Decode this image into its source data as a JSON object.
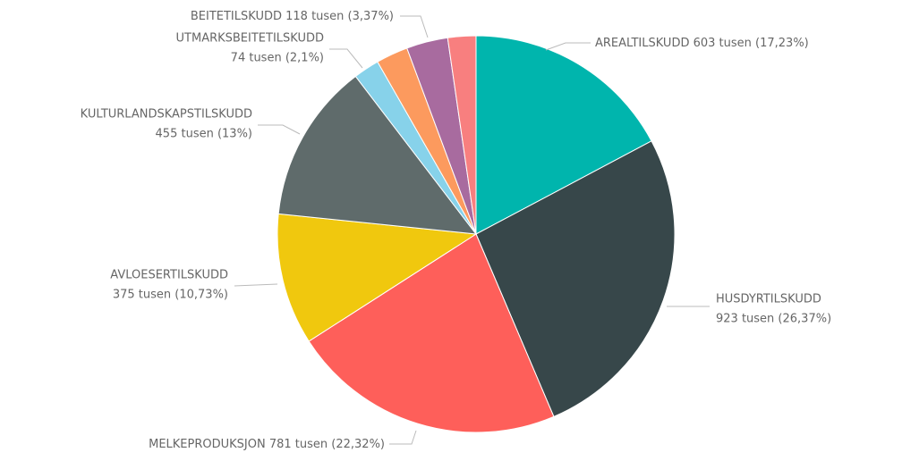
{
  "chart_data": {
    "type": "pie",
    "categories": [
      "AREALTILSKUDD",
      "HUSDYRTILSKUDD",
      "MELKEPRODUKSJON",
      "AVLOESERTILSKUDD",
      "KULTURLANDSKAPSTILSKUDD",
      "UTMARKSBEITETILSKUDD",
      null,
      "BEITETILSKUDD",
      null
    ],
    "values": [
      603,
      923,
      781,
      375,
      455,
      74,
      91,
      118,
      80
    ],
    "value_labels": [
      "603 tusen (17,23%)",
      "923 tusen (26,37%)",
      "781 tusen (22,32%)",
      "375 tusen (10,73%)",
      "455 tusen (13%)",
      "74 tusen (2,1%)",
      null,
      "118 tusen (3,37%)",
      null
    ],
    "colors": [
      "#00b5ad",
      "#37474a",
      "#fe5f5a",
      "#f0c80e",
      "#5f6b6b",
      "#87d2ea",
      "#fc9a5e",
      "#a86b9f",
      "#f87f7f"
    ]
  }
}
